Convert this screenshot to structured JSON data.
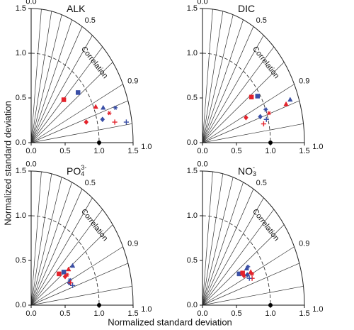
{
  "axis_labels": {
    "x": "Normalized standard deviation",
    "y": "Normalized standard deviation"
  },
  "chart_data": [
    {
      "type": "taylor",
      "title": "ALK",
      "xlim": [
        0,
        1.5
      ],
      "ylim": [
        0,
        1.5
      ],
      "xticks": [
        {
          "value": 0,
          "label": "0.0"
        },
        {
          "value": 0.5,
          "label": "0.5"
        },
        {
          "value": 1,
          "label": "1.0"
        },
        {
          "value": 1.5,
          "label": "1.5"
        }
      ],
      "yticks": [
        {
          "value": 0,
          "label": "0.0"
        },
        {
          "value": 0.5,
          "label": "0.5"
        },
        {
          "value": 1,
          "label": "1.0"
        },
        {
          "value": 1.5,
          "label": "1.5"
        }
      ],
      "correlation_label": "Correlation",
      "correlation_lines": [
        0.1,
        0.2,
        0.3,
        0.4,
        0.5,
        0.6,
        0.7,
        0.8,
        0.9,
        0.95,
        0.99
      ],
      "correlation_ticks": [
        {
          "value": 0,
          "label": "0.0"
        },
        {
          "value": 0.5,
          "label": "0.5"
        },
        {
          "value": 0.9,
          "label": "0.9"
        },
        {
          "value": 1,
          "label": "1.0"
        }
      ],
      "reference": {
        "x": 1,
        "y": 0
      },
      "points": [
        {
          "marker": "square",
          "color": "#e4222b",
          "x": 0.48,
          "y": 0.48
        },
        {
          "marker": "square",
          "color": "#3a4fa6",
          "x": 0.69,
          "y": 0.56
        },
        {
          "marker": "triangle",
          "color": "#e4222b",
          "x": 0.95,
          "y": 0.4
        },
        {
          "marker": "triangle",
          "color": "#3a4fa6",
          "x": 1.06,
          "y": 0.39
        },
        {
          "marker": "star",
          "color": "#e4222b",
          "x": 1.15,
          "y": 0.33
        },
        {
          "marker": "star",
          "color": "#3a4fa6",
          "x": 1.24,
          "y": 0.39
        },
        {
          "marker": "diamond",
          "color": "#e4222b",
          "x": 0.81,
          "y": 0.23
        },
        {
          "marker": "diamond",
          "color": "#3a4fa6",
          "x": 1.05,
          "y": 0.26
        },
        {
          "marker": "plus",
          "color": "#e4222b",
          "x": 1.23,
          "y": 0.23
        },
        {
          "marker": "plus",
          "color": "#3a4fa6",
          "x": 1.4,
          "y": 0.23
        }
      ]
    },
    {
      "type": "taylor",
      "title": "DIC",
      "xlim": [
        0,
        1.5
      ],
      "ylim": [
        0,
        1.5
      ],
      "xticks": [
        {
          "value": 0,
          "label": "0.0"
        },
        {
          "value": 0.5,
          "label": "0.5"
        },
        {
          "value": 1,
          "label": "1.0"
        },
        {
          "value": 1.5,
          "label": "1.5"
        }
      ],
      "yticks": [
        {
          "value": 0,
          "label": "0.0"
        },
        {
          "value": 0.5,
          "label": "0.5"
        },
        {
          "value": 1,
          "label": "1.0"
        },
        {
          "value": 1.5,
          "label": "1.5"
        }
      ],
      "correlation_label": "Correlation",
      "correlation_lines": [
        0.1,
        0.2,
        0.3,
        0.4,
        0.5,
        0.6,
        0.7,
        0.8,
        0.9,
        0.95,
        0.99
      ],
      "correlation_ticks": [
        {
          "value": 0,
          "label": "0.0"
        },
        {
          "value": 0.5,
          "label": "0.5"
        },
        {
          "value": 0.9,
          "label": "0.9"
        },
        {
          "value": 1,
          "label": "1.0"
        }
      ],
      "reference": {
        "x": 1,
        "y": 0
      },
      "points": [
        {
          "marker": "square",
          "color": "#e4222b",
          "x": 0.72,
          "y": 0.51
        },
        {
          "marker": "square",
          "color": "#3a4fa6",
          "x": 0.81,
          "y": 0.52
        },
        {
          "marker": "triangle",
          "color": "#e4222b",
          "x": 1.23,
          "y": 0.43
        },
        {
          "marker": "triangle",
          "color": "#3a4fa6",
          "x": 1.29,
          "y": 0.48
        },
        {
          "marker": "star",
          "color": "#e4222b",
          "x": 0.98,
          "y": 0.33
        },
        {
          "marker": "star",
          "color": "#3a4fa6",
          "x": 0.93,
          "y": 0.37
        },
        {
          "marker": "diamond",
          "color": "#e4222b",
          "x": 0.64,
          "y": 0.28
        },
        {
          "marker": "diamond",
          "color": "#3a4fa6",
          "x": 0.85,
          "y": 0.29
        },
        {
          "marker": "plus",
          "color": "#e4222b",
          "x": 0.9,
          "y": 0.21
        },
        {
          "marker": "plus",
          "color": "#3a4fa6",
          "x": 0.94,
          "y": 0.26
        }
      ]
    },
    {
      "type": "taylor",
      "title": "PO",
      "title_sub": "4",
      "title_sup": "3-",
      "xlim": [
        0,
        1.5
      ],
      "ylim": [
        0,
        1.5
      ],
      "xticks": [
        {
          "value": 0,
          "label": "0.0"
        },
        {
          "value": 0.5,
          "label": "0.5"
        },
        {
          "value": 1,
          "label": "1.0"
        },
        {
          "value": 1.5,
          "label": "1.5"
        }
      ],
      "yticks": [
        {
          "value": 0,
          "label": "0.0"
        },
        {
          "value": 0.5,
          "label": "0.5"
        },
        {
          "value": 1,
          "label": "1.0"
        },
        {
          "value": 1.5,
          "label": "1.5"
        }
      ],
      "correlation_label": "Correlation",
      "correlation_lines": [
        0.1,
        0.2,
        0.3,
        0.4,
        0.5,
        0.6,
        0.7,
        0.8,
        0.9,
        0.95,
        0.99
      ],
      "correlation_ticks": [
        {
          "value": 0,
          "label": "0.0"
        },
        {
          "value": 0.5,
          "label": "0.5"
        },
        {
          "value": 0.9,
          "label": "0.9"
        },
        {
          "value": 1,
          "label": "1.0"
        }
      ],
      "reference": {
        "x": 1,
        "y": 0
      },
      "points": [
        {
          "marker": "square",
          "color": "#e4222b",
          "x": 0.41,
          "y": 0.35
        },
        {
          "marker": "square",
          "color": "#3a4fa6",
          "x": 0.48,
          "y": 0.37
        },
        {
          "marker": "triangle",
          "color": "#e4222b",
          "x": 0.55,
          "y": 0.4
        },
        {
          "marker": "triangle",
          "color": "#3a4fa6",
          "x": 0.61,
          "y": 0.44
        },
        {
          "marker": "star",
          "color": "#e4222b",
          "x": 0.53,
          "y": 0.34
        },
        {
          "marker": "star",
          "color": "#3a4fa6",
          "x": 0.57,
          "y": 0.28
        },
        {
          "marker": "diamond",
          "color": "#e4222b",
          "x": 0.5,
          "y": 0.32
        },
        {
          "marker": "diamond",
          "color": "#3a4fa6",
          "x": 0.56,
          "y": 0.25
        },
        {
          "marker": "plus",
          "color": "#e4222b",
          "x": 0.58,
          "y": 0.25
        },
        {
          "marker": "plus",
          "color": "#3a4fa6",
          "x": 0.61,
          "y": 0.22
        }
      ]
    },
    {
      "type": "taylor",
      "title": "NO",
      "title_sub": "3",
      "title_sup": "-",
      "xlim": [
        0,
        1.5
      ],
      "ylim": [
        0,
        1.5
      ],
      "xticks": [
        {
          "value": 0,
          "label": "0.0"
        },
        {
          "value": 0.5,
          "label": "0.5"
        },
        {
          "value": 1,
          "label": "1.0"
        },
        {
          "value": 1.5,
          "label": "1.5"
        }
      ],
      "yticks": [
        {
          "value": 0,
          "label": "0.0"
        },
        {
          "value": 0.5,
          "label": "0.5"
        },
        {
          "value": 1,
          "label": "1.0"
        },
        {
          "value": 1.5,
          "label": "1.5"
        }
      ],
      "correlation_label": "Correlation",
      "correlation_lines": [
        0.1,
        0.2,
        0.3,
        0.4,
        0.5,
        0.6,
        0.7,
        0.8,
        0.9,
        0.95,
        0.99
      ],
      "correlation_ticks": [
        {
          "value": 0,
          "label": "0.0"
        },
        {
          "value": 0.5,
          "label": "0.5"
        },
        {
          "value": 0.9,
          "label": "0.9"
        },
        {
          "value": 1,
          "label": "1.0"
        }
      ],
      "reference": {
        "x": 1,
        "y": 0
      },
      "points": [
        {
          "marker": "square",
          "color": "#3a4fa6",
          "x": 0.54,
          "y": 0.35
        },
        {
          "marker": "square",
          "color": "#e4222b",
          "x": 0.59,
          "y": 0.36
        },
        {
          "marker": "triangle",
          "color": "#e4222b",
          "x": 0.71,
          "y": 0.37
        },
        {
          "marker": "triangle",
          "color": "#3a4fa6",
          "x": 0.65,
          "y": 0.41
        },
        {
          "marker": "star",
          "color": "#e4222b",
          "x": 0.73,
          "y": 0.35
        },
        {
          "marker": "star",
          "color": "#3a4fa6",
          "x": 0.67,
          "y": 0.43
        },
        {
          "marker": "diamond",
          "color": "#e4222b",
          "x": 0.61,
          "y": 0.33
        },
        {
          "marker": "diamond",
          "color": "#3a4fa6",
          "x": 0.66,
          "y": 0.34
        },
        {
          "marker": "plus",
          "color": "#e4222b",
          "x": 0.73,
          "y": 0.3
        },
        {
          "marker": "plus",
          "color": "#3a4fa6",
          "x": 0.69,
          "y": 0.3
        }
      ]
    }
  ]
}
